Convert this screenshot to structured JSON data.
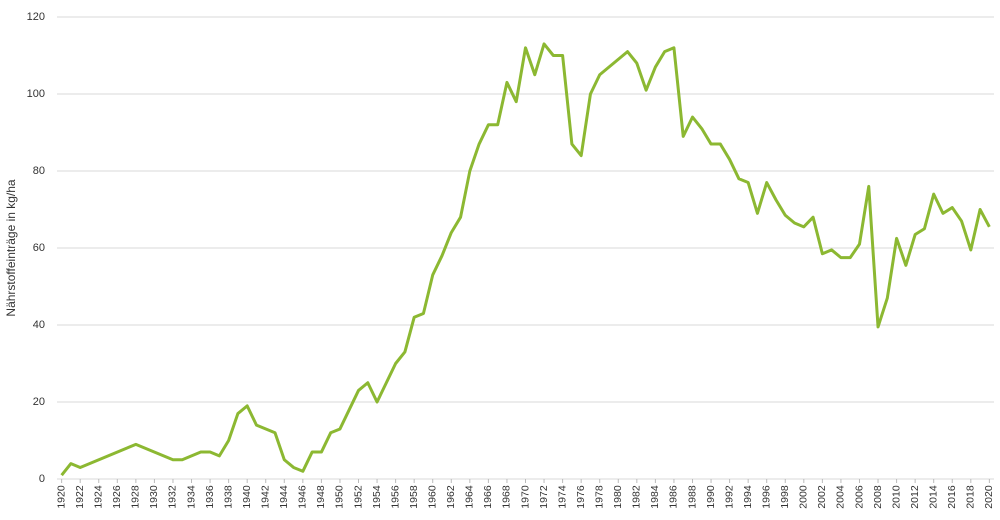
{
  "chart_data": {
    "type": "line",
    "y_label": "Nährstoffeinträge in kg/ha",
    "x": [
      1920,
      1921,
      1922,
      1928,
      1932,
      1933,
      1935,
      1936,
      1937,
      1938,
      1939,
      1940,
      1941,
      1943,
      1944,
      1945,
      1946,
      1947,
      1948,
      1949,
      1950,
      1951,
      1952,
      1953,
      1954,
      1955,
      1956,
      1957,
      1958,
      1959,
      1960,
      1961,
      1962,
      1963,
      1964,
      1965,
      1966,
      1967,
      1968,
      1969,
      1970,
      1971,
      1972,
      1973,
      1974,
      1975,
      1976,
      1977,
      1978,
      1981,
      1982,
      1983,
      1984,
      1985,
      1986,
      1987,
      1988,
      1989,
      1990,
      1991,
      1992,
      1993,
      1994,
      1995,
      1996,
      1997,
      1998,
      1999,
      2000,
      2001,
      2002,
      2003,
      2004,
      2005,
      2006,
      2007,
      2008,
      2009,
      2010,
      2011,
      2012,
      2013,
      2014,
      2015,
      2016,
      2017,
      2018,
      2019,
      2020
    ],
    "series": [
      {
        "color": "#8cb832",
        "values": [
          1,
          4,
          3,
          9,
          5,
          5,
          7,
          7,
          6,
          10,
          17,
          19,
          14,
          12,
          5,
          3,
          2,
          7,
          7,
          12,
          13,
          18,
          23,
          25,
          20,
          25,
          30,
          33,
          42,
          43,
          53,
          58,
          64,
          68,
          80,
          87,
          92,
          92,
          103,
          98,
          112,
          105,
          113,
          110,
          110,
          87,
          84,
          100,
          105,
          111,
          108,
          101,
          107,
          111,
          112,
          89,
          94,
          91,
          87,
          87,
          83,
          78,
          77,
          69,
          77,
          72.5,
          68.5,
          66.5,
          65.5,
          68,
          58.5,
          59.5,
          57.5,
          57.5,
          61,
          76,
          39.5,
          47,
          62.5,
          55.5,
          63.5,
          65,
          74,
          69,
          70.5,
          67,
          59.5,
          70,
          65.5
        ]
      }
    ],
    "xlim": [
      1919.5,
      2020.5
    ],
    "xticks": [
      1920,
      1922,
      1924,
      1926,
      1928,
      1930,
      1932,
      1934,
      1936,
      1938,
      1940,
      1942,
      1944,
      1946,
      1948,
      1950,
      1952,
      1954,
      1956,
      1958,
      1960,
      1962,
      1964,
      1966,
      1968,
      1970,
      1972,
      1974,
      1976,
      1978,
      1980,
      1982,
      1984,
      1986,
      1988,
      1990,
      1992,
      1994,
      1996,
      1998,
      2000,
      2002,
      2004,
      2006,
      2008,
      2010,
      2012,
      2014,
      2016,
      2018,
      2020
    ],
    "ylim": [
      0,
      120
    ],
    "yticks": [
      0,
      20,
      40,
      60,
      80,
      100,
      120
    ],
    "grid": true
  }
}
